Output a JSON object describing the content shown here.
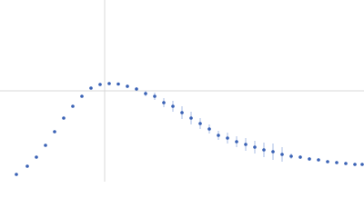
{
  "chart_data": {
    "type": "scatter",
    "xlim": [
      0,
      400
    ],
    "ylim": [
      0,
      200
    ],
    "xticks": [
      115
    ],
    "yticks": [
      100
    ],
    "grid": true,
    "color": "#3a62b5",
    "error_color": "#a9bde6",
    "x": [
      18,
      30,
      40,
      50,
      60,
      70,
      80,
      90,
      100,
      110,
      120,
      130,
      140,
      150,
      160,
      170,
      180,
      190,
      200,
      210,
      220,
      230,
      240,
      250,
      260,
      270,
      280,
      290,
      300,
      310,
      320,
      330,
      340,
      350,
      360,
      370,
      380,
      390,
      398
    ],
    "values": [
      8,
      17,
      27,
      40,
      55,
      70,
      83,
      94,
      103,
      107,
      108,
      107.5,
      105,
      102,
      97,
      94,
      87,
      83,
      76,
      70,
      64,
      58,
      51,
      48,
      44,
      41,
      38,
      35,
      33,
      30,
      28,
      27,
      25,
      24,
      22,
      21,
      20,
      19,
      19
    ],
    "errors": [
      0.5,
      0.5,
      0.5,
      0.5,
      0.5,
      0.5,
      0.5,
      0.5,
      1,
      1,
      1.5,
      1.5,
      2,
      2,
      3,
      4,
      5,
      6,
      7,
      7,
      6,
      5,
      5,
      6,
      6,
      7,
      7,
      8,
      9,
      8,
      3,
      2,
      2,
      1.5,
      1.5,
      1.5,
      1.5,
      1.5,
      1.5
    ]
  }
}
